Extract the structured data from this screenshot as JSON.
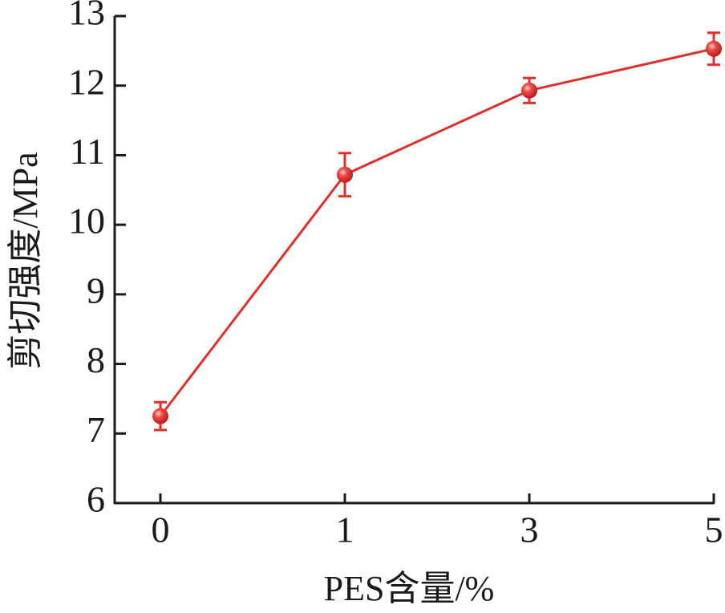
{
  "chart_data": {
    "type": "line",
    "x_label": "PES含量/%",
    "y_label": "剪切强度/MPa",
    "categories": [
      "0",
      "1",
      "3",
      "5"
    ],
    "values": [
      7.25,
      10.72,
      11.93,
      12.53
    ],
    "errors": [
      0.2,
      0.31,
      0.18,
      0.23
    ],
    "color": "#e0302c",
    "ylim": [
      6,
      13
    ],
    "yticks": [
      6,
      7,
      8,
      9,
      10,
      11,
      12,
      13
    ],
    "grid": false
  }
}
